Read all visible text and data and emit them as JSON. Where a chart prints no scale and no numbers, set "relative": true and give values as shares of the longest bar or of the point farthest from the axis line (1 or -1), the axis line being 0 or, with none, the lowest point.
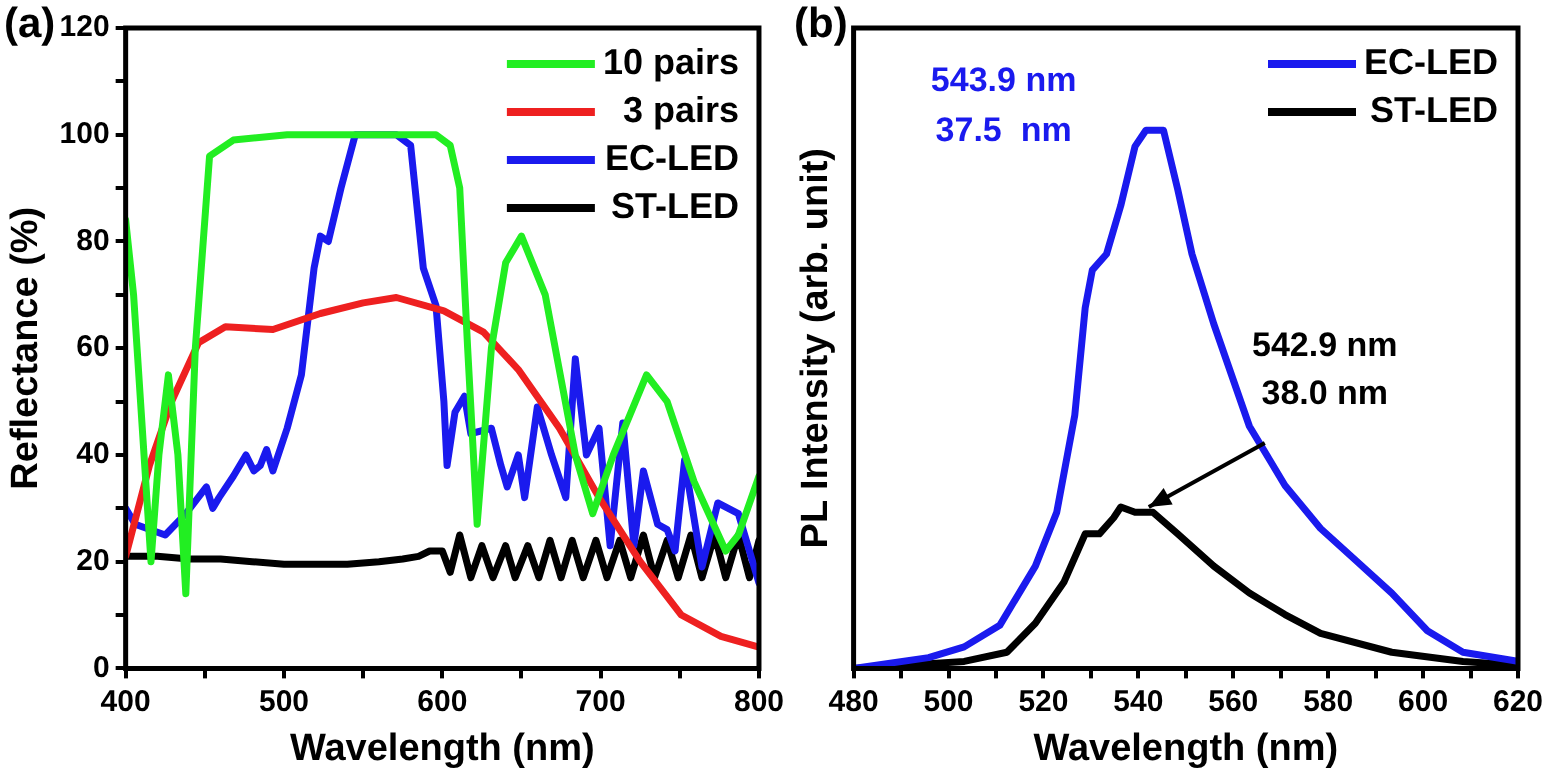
{
  "chart_data": [
    {
      "type": "line",
      "title": "(a)",
      "xlabel": "Wavelength (nm)",
      "ylabel": "Reflectance (%)",
      "xlim": [
        400,
        800
      ],
      "ylim": [
        0,
        120
      ],
      "xticks": [
        400,
        {
          "value": 450,
          "label": null
        },
        500,
        {
          "value": 550,
          "label": null
        },
        600,
        {
          "value": 650,
          "label": null
        },
        700,
        {
          "value": 750,
          "label": null
        },
        800
      ],
      "yticks": [
        0,
        {
          "value": 10,
          "label": null
        },
        20,
        {
          "value": 30,
          "label": null
        },
        40,
        {
          "value": 50,
          "label": null
        },
        60,
        {
          "value": 70,
          "label": null
        },
        80,
        {
          "value": 90,
          "label": null
        },
        100,
        {
          "value": 110,
          "label": null
        },
        120
      ],
      "grid": false,
      "legend": "top right",
      "marker": "none",
      "line_style": "solid",
      "series": [
        {
          "name": "10 pairs",
          "color": "#22ee22",
          "x": [
            400,
            405,
            416,
            421,
            427,
            433,
            438,
            444,
            453,
            468,
            502,
            560,
            596,
            605,
            611,
            616,
            622,
            631,
            640,
            650,
            665,
            684,
            695,
            708,
            729,
            742,
            759,
            779,
            787,
            800
          ],
          "values": [
            84,
            70,
            20,
            40,
            55,
            40,
            14,
            60,
            96,
            99,
            100,
            100,
            100,
            98,
            90,
            60,
            27,
            60,
            76,
            81,
            70,
            40,
            29,
            40,
            55,
            50,
            35,
            22,
            25,
            36
          ]
        },
        {
          "name": "3 pairs",
          "color": "#ee2020",
          "x": [
            400,
            415,
            429,
            446,
            463,
            493,
            523,
            550,
            571,
            601,
            626,
            648,
            674,
            699,
            725,
            751,
            776,
            800
          ],
          "values": [
            21,
            38,
            50,
            61,
            64,
            63.5,
            66.5,
            68.5,
            69.5,
            67,
            63,
            56,
            45,
            32,
            20,
            10,
            6,
            4
          ]
        },
        {
          "name": "EC-LED",
          "color": "#1a1aee",
          "x": [
            400,
            406,
            425,
            438,
            451,
            455,
            459,
            468,
            476,
            481,
            485,
            489,
            493,
            502,
            511,
            519,
            523,
            528,
            536,
            545,
            571,
            580,
            588,
            596,
            601,
            603,
            608,
            614,
            618,
            631,
            637,
            641,
            648,
            652,
            660,
            669,
            678,
            684,
            691,
            699,
            706,
            714,
            721,
            727,
            736,
            742,
            747,
            753,
            764,
            774,
            787,
            800
          ],
          "values": [
            30,
            27,
            25,
            29,
            34,
            30,
            32,
            36,
            40,
            37,
            38,
            41,
            37,
            45,
            55,
            75,
            81,
            80,
            90,
            100,
            100,
            98,
            75,
            68,
            50,
            38,
            48,
            51,
            44,
            45,
            38,
            34,
            40,
            32,
            49,
            40,
            32,
            58,
            40,
            45,
            23,
            46,
            23,
            37,
            27,
            26,
            22,
            39,
            19,
            31,
            29,
            16
          ]
        },
        {
          "name": "ST-LED",
          "color": "#000000",
          "x": [
            400,
            420,
            440,
            460,
            480,
            500,
            520,
            540,
            560,
            575,
            585,
            592,
            600,
            605,
            611,
            618,
            625,
            632,
            640,
            646,
            654,
            661,
            668,
            675,
            682,
            689,
            697,
            704,
            712,
            719,
            727,
            734,
            742,
            749,
            757,
            764,
            772,
            779,
            787,
            794,
            800
          ],
          "values": [
            21,
            21,
            20.5,
            20.5,
            20,
            19.5,
            19.5,
            19.5,
            20,
            20.5,
            21,
            22,
            22,
            18,
            25,
            17,
            23,
            17,
            23,
            17,
            23,
            17,
            24,
            17,
            24,
            17,
            24,
            17,
            24,
            17,
            25,
            17,
            24,
            17,
            25,
            17,
            25,
            17,
            25,
            17,
            24
          ]
        }
      ]
    },
    {
      "type": "line",
      "title": "(b)",
      "xlabel": "Wavelength (nm)",
      "ylabel": "PL Intensity (arb. unit)",
      "relative": true,
      "xlim": [
        480,
        620
      ],
      "xticks": [
        480,
        {
          "value": 490,
          "label": null
        },
        500,
        {
          "value": 510,
          "label": null
        },
        520,
        {
          "value": 530,
          "label": null
        },
        540,
        {
          "value": 550,
          "label": null
        },
        560,
        {
          "value": 570,
          "label": null
        },
        580,
        {
          "value": 590,
          "label": null
        },
        600,
        {
          "value": 610,
          "label": null
        },
        620
      ],
      "grid": false,
      "legend": "top right",
      "marker": "none",
      "line_style": "solid",
      "annotations": [
        "543.9 nm\n37.5  nm",
        "542.9 nm\n38.0 nm"
      ],
      "series": [
        {
          "name": "EC-LED",
          "color": "#1a1aee",
          "x": [
            480,
            495.8,
            503.3,
            510.8,
            518.3,
            522.8,
            526.6,
            528.8,
            530.3,
            533.3,
            536.3,
            539.3,
            541.6,
            545.3,
            548.3,
            551.3,
            555.9,
            563.4,
            570.9,
            578.4,
            585.9,
            593.4,
            600.9,
            608.4,
            620
          ],
          "values": [
            0,
            0.02,
            0.04,
            0.08,
            0.19,
            0.29,
            0.47,
            0.67,
            0.74,
            0.77,
            0.86,
            0.97,
            1,
            1,
            0.89,
            0.77,
            0.64,
            0.45,
            0.34,
            0.26,
            0.2,
            0.14,
            0.07,
            0.03,
            0.013
          ]
        },
        {
          "name": "ST-LED",
          "color": "#000000",
          "x": [
            480,
            503.3,
            512.3,
            518.3,
            524.3,
            528.8,
            531.8,
            534.8,
            536.3,
            539.3,
            543.1,
            548.3,
            555.9,
            563.4,
            570.9,
            578.4,
            593.4,
            608.4,
            620
          ],
          "values": [
            0,
            0.013,
            0.03,
            0.084,
            0.16,
            0.25,
            0.25,
            0.28,
            0.3,
            0.29,
            0.29,
            0.25,
            0.19,
            0.14,
            0.1,
            0.065,
            0.03,
            0.013,
            0.006
          ]
        }
      ]
    }
  ]
}
